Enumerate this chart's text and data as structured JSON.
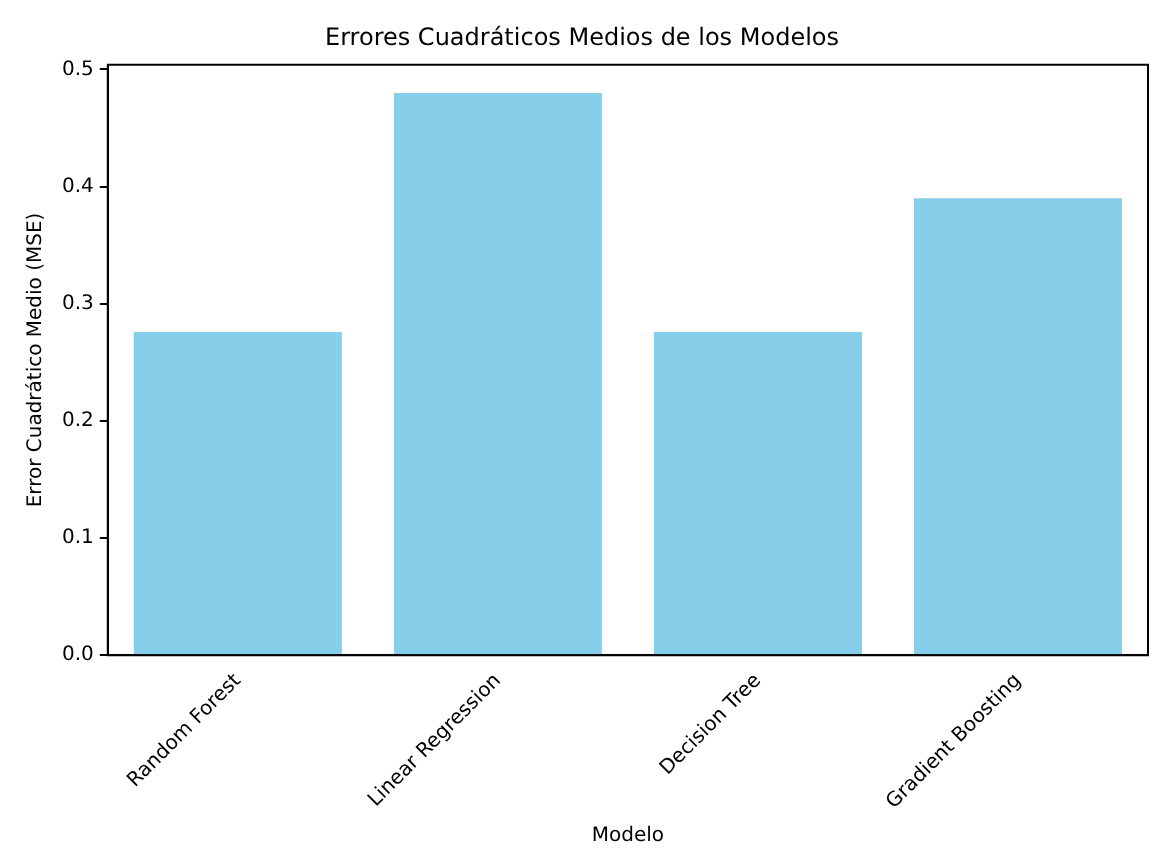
{
  "chart_data": {
    "type": "bar",
    "title": "Errores Cuadráticos Medios de los Modelos",
    "xlabel": "Modelo",
    "ylabel": "Error Cuadrático Medio (MSE)",
    "categories": [
      "Random Forest",
      "Linear Regression",
      "Decision Tree",
      "Gradient Boosting"
    ],
    "values": [
      0.276,
      0.48,
      0.276,
      0.39
    ],
    "color": "#87ceeb",
    "ylim": [
      0,
      0.504
    ],
    "yticks": [
      {
        "value": 0,
        "label": "0.0"
      },
      0.1,
      0.2,
      0.3,
      0.4,
      0.5
    ]
  }
}
